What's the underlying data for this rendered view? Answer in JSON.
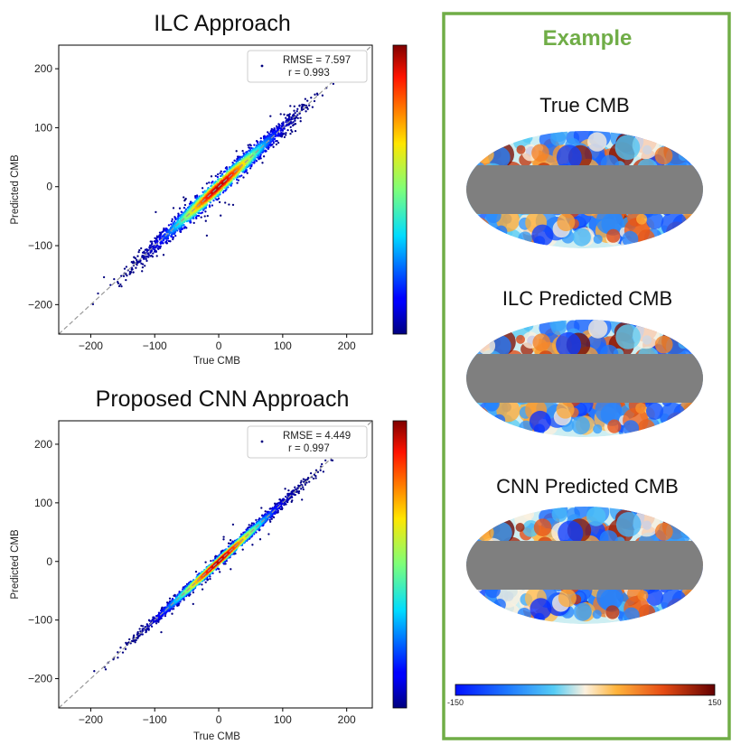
{
  "chart_data": [
    {
      "type": "scatter",
      "title": "ILC Approach",
      "xlabel": "True CMB",
      "ylabel": "Predicted CMB",
      "xlim": [
        -250,
        240
      ],
      "ylim": [
        -250,
        240
      ],
      "xticks": [
        -200,
        -100,
        0,
        100,
        200
      ],
      "yticks": [
        -200,
        -100,
        0,
        100,
        200
      ],
      "legend": {
        "position": "top-right",
        "rmse": "RMSE = 7.597",
        "r": "r = 0.993"
      },
      "density_colorbar": true,
      "reference_line": "y = x",
      "point_spread": 7.6,
      "range": [
        -220,
        180
      ],
      "seed": 11
    },
    {
      "type": "scatter",
      "title": "Proposed CNN Approach",
      "xlabel": "True CMB",
      "ylabel": "Predicted CMB",
      "xlim": [
        -250,
        240
      ],
      "ylim": [
        -250,
        240
      ],
      "xticks": [
        -200,
        -100,
        0,
        100,
        200
      ],
      "yticks": [
        -200,
        -100,
        0,
        100,
        200
      ],
      "legend": {
        "position": "top-right",
        "rmse": "RMSE = 4.449",
        "r": "r = 0.997"
      },
      "density_colorbar": true,
      "reference_line": "y = x",
      "point_spread": 4.4,
      "range": [
        -200,
        215
      ],
      "seed": 29
    }
  ],
  "example": {
    "title": "Example",
    "maps": [
      {
        "title": "True CMB"
      },
      {
        "title": "ILC Predicted CMB"
      },
      {
        "title": "CNN Predicted CMB"
      }
    ],
    "colorbar": {
      "min_label": "-150",
      "max_label": "150"
    }
  },
  "colors": {
    "accent_green": "#70ad47",
    "mask_gray": "#7f7f7f"
  }
}
